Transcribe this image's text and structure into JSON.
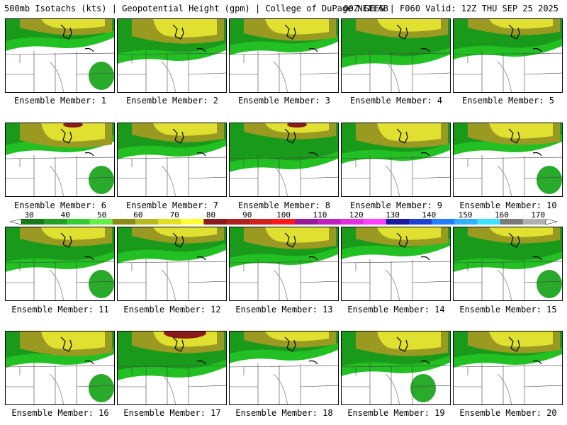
{
  "header": {
    "left": "500mb Isotachs (kts) | Geopotential Height (gpm) | College of DuPage NEXLAB",
    "right": "00Z GEFS | F060 Valid: 12Z THU SEP 25 2025"
  },
  "panels": [
    {
      "label": "Ensemble Member: 1"
    },
    {
      "label": "Ensemble Member: 2"
    },
    {
      "label": "Ensemble Member: 3"
    },
    {
      "label": "Ensemble Member: 4"
    },
    {
      "label": "Ensemble Member: 5"
    },
    {
      "label": "Ensemble Member: 6"
    },
    {
      "label": "Ensemble Member: 7"
    },
    {
      "label": "Ensemble Member: 8"
    },
    {
      "label": "Ensemble Member: 9"
    },
    {
      "label": "Ensemble Member: 10"
    },
    {
      "label": "Ensemble Member: 11"
    },
    {
      "label": "Ensemble Member: 12"
    },
    {
      "label": "Ensemble Member: 13"
    },
    {
      "label": "Ensemble Member: 14"
    },
    {
      "label": "Ensemble Member: 15"
    },
    {
      "label": "Ensemble Member: 16"
    },
    {
      "label": "Ensemble Member: 17"
    },
    {
      "label": "Ensemble Member: 18"
    },
    {
      "label": "Ensemble Member: 19"
    },
    {
      "label": "Ensemble Member: 20"
    }
  ],
  "chart_data": {
    "type": "heatmap",
    "colorbar": {
      "ticks": [
        "30",
        "40",
        "50",
        "60",
        "70",
        "80",
        "90",
        "100",
        "110",
        "120",
        "130",
        "140",
        "150",
        "160",
        "170"
      ],
      "colors": [
        "#1a7a1a",
        "#22a022",
        "#33cc33",
        "#66ee44",
        "#8b8b1a",
        "#b8b820",
        "#e0e020",
        "#ffff33",
        "#8b1a1a",
        "#b02020",
        "#d02020",
        "#ff1a1a",
        "#9a1a9a",
        "#c020c0",
        "#e030e0",
        "#ff40ff",
        "#1a1aa0",
        "#2040d0",
        "#2080ff",
        "#30b0ff",
        "#40e0ff",
        "#7a7a7a",
        "#b0b0b0"
      ]
    }
  }
}
